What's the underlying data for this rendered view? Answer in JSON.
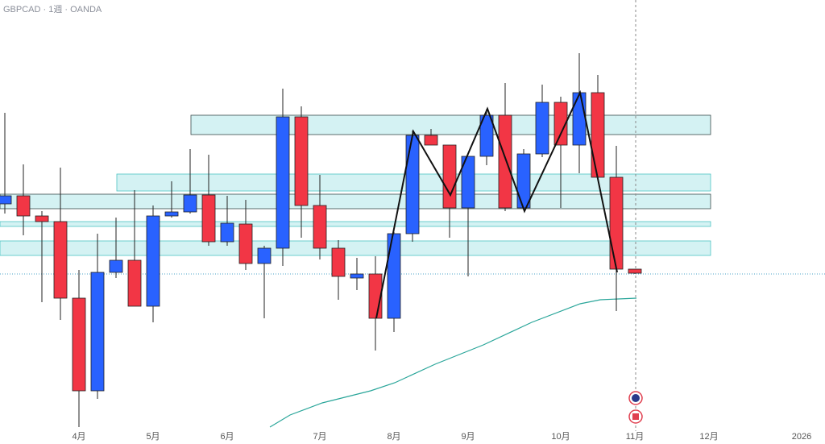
{
  "chart_data": {
    "type": "candlestick",
    "title": "GBPCAD · 1週 · OANDA",
    "categories": [
      null,
      null,
      null,
      null,
      "4月",
      null,
      null,
      null,
      "5月",
      null,
      null,
      null,
      "6月",
      null,
      null,
      null,
      null,
      "7月",
      null,
      null,
      null,
      "8月",
      null,
      null,
      null,
      "9月",
      null,
      null,
      null,
      null,
      "10月",
      null,
      null,
      null,
      "11月",
      null,
      null,
      null,
      "12月",
      null,
      null,
      null,
      null,
      "2026"
    ],
    "open": [
      298,
      308,
      283,
      276,
      181,
      66,
      213,
      228,
      171,
      283,
      288,
      309,
      251,
      273,
      224,
      243,
      406,
      296,
      243,
      206,
      211,
      156,
      261,
      383,
      371,
      293,
      357,
      408,
      293,
      360,
      424,
      371,
      436,
      331,
      217,
      null,
      null,
      null,
      null,
      null,
      null,
      null,
      null,
      null
    ],
    "high": [
      411,
      347,
      289,
      343,
      216,
      261,
      281,
      315,
      296,
      326,
      366,
      359,
      308,
      303,
      246,
      441,
      419,
      334,
      253,
      231,
      233,
      263,
      389,
      391,
      371,
      357,
      416,
      448,
      366,
      446,
      431,
      485,
      458,
      370,
      217,
      null,
      null,
      null,
      null,
      null,
      null,
      null,
      null,
      null
    ],
    "low": [
      286,
      259,
      176,
      154,
      21,
      56,
      206,
      171,
      151,
      281,
      286,
      246,
      246,
      216,
      156,
      221,
      256,
      229,
      179,
      191,
      116,
      139,
      251,
      371,
      256,
      208,
      346,
      289,
      291,
      356,
      293,
      336,
      329,
      165,
      211,
      null,
      null,
      null,
      null,
      null,
      null,
      null,
      null,
      null
    ],
    "close": [
      308,
      283,
      276,
      181,
      66,
      213,
      228,
      171,
      283,
      288,
      309,
      251,
      274,
      224,
      243,
      406,
      296,
      243,
      208,
      211,
      156,
      261,
      383,
      371,
      293,
      357,
      408,
      293,
      360,
      424,
      371,
      436,
      331,
      217,
      212,
      null,
      null,
      null,
      null,
      null,
      null,
      null,
      null,
      null
    ],
    "up_color": "#2962ff",
    "down_color": "#f23645",
    "ylim": [
      0,
      551
    ]
  }
}
